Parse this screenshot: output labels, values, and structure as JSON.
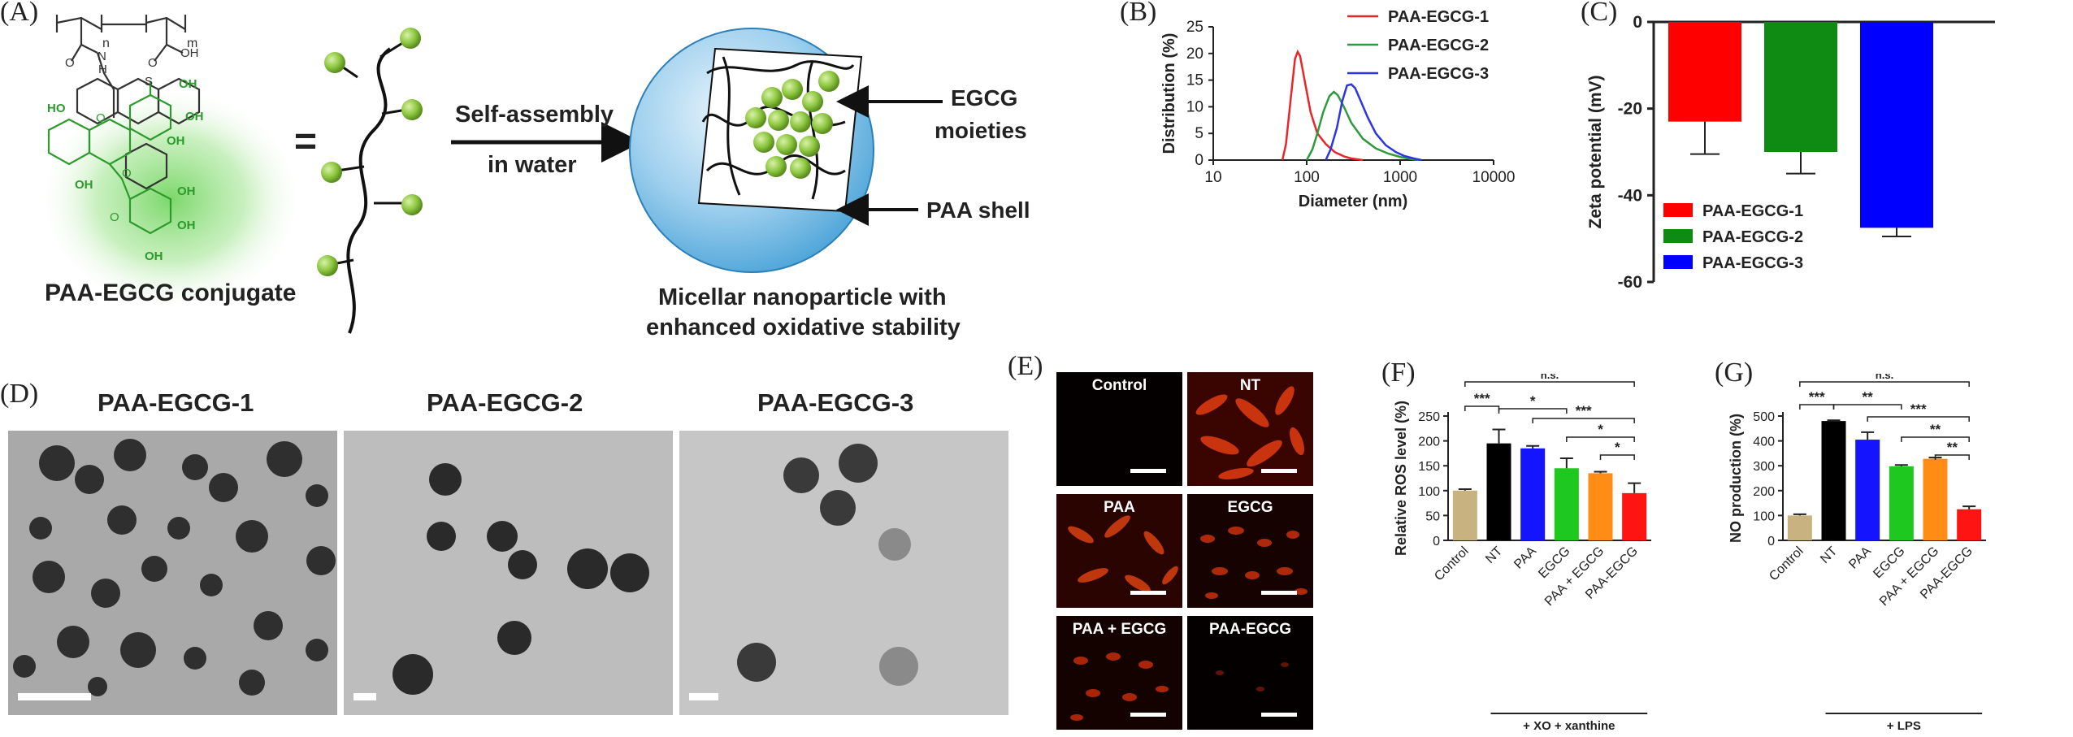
{
  "panels": {
    "a": "(A)",
    "b": "(B)",
    "c": "(C)",
    "d": "(D)",
    "e": "(E)",
    "f": "(F)",
    "g": "(G)"
  },
  "panelA": {
    "n_sub": "n",
    "m_sub": "m",
    "nh": "N",
    "h_nh": "H",
    "oh_acid": "OH",
    "s": "S",
    "o1": "O",
    "o2": "O",
    "o3": "O",
    "o4": "O",
    "o5": "O",
    "oh_labels": [
      "OH",
      "OH",
      "OH",
      "HO",
      "OH",
      "OH",
      "OH",
      "OH"
    ],
    "equals": "=",
    "conjugate_label": "PAA-EGCG conjugate",
    "arrow_top": "Self-assembly",
    "arrow_bottom": "in water",
    "egcg_label_1": "EGCG",
    "egcg_label_2": "moieties",
    "shell_label": "PAA shell",
    "micelle_caption_1": "Micellar nanoparticle with",
    "micelle_caption_2": "enhanced oxidative stability"
  },
  "chart_data": [
    {
      "id": "B",
      "type": "line",
      "xlabel": "Diameter (nm)",
      "ylabel": "Distribution (%)",
      "xscale": "log",
      "xlim": [
        10,
        10000
      ],
      "ylim": [
        0,
        25
      ],
      "xticks": [
        "10",
        "100",
        "1000",
        "10000"
      ],
      "yticks": [
        "0",
        "5",
        "10",
        "15",
        "20",
        "25"
      ],
      "legend_position": "top-right",
      "series": [
        {
          "name": "PAA-EGCG-1",
          "color": "#e8262a",
          "x": [
            55,
            60,
            68,
            75,
            80,
            85,
            95,
            110,
            130,
            160,
            200,
            250,
            300,
            400
          ],
          "y": [
            0,
            3,
            12,
            19,
            20.3,
            19.5,
            15,
            9,
            5,
            3,
            1.5,
            0.7,
            0.3,
            0
          ]
        },
        {
          "name": "PAA-EGCG-2",
          "color": "#2e9a3c",
          "x": [
            100,
            115,
            130,
            150,
            175,
            195,
            215,
            250,
            300,
            400,
            550,
            750,
            1000,
            1300,
            1600
          ],
          "y": [
            0,
            2,
            5,
            9,
            12,
            12.8,
            12.2,
            10,
            7,
            4,
            2.2,
            1.2,
            0.6,
            0.2,
            0
          ]
        },
        {
          "name": "PAA-EGCG-3",
          "color": "#2b35e0",
          "x": [
            160,
            180,
            210,
            240,
            270,
            300,
            330,
            380,
            450,
            550,
            700,
            900,
            1100,
            1400,
            1700
          ],
          "y": [
            0,
            2,
            6,
            11,
            14,
            14.2,
            13.5,
            11,
            8,
            5,
            2.8,
            1.5,
            0.8,
            0.3,
            0
          ]
        }
      ]
    },
    {
      "id": "C",
      "type": "bar",
      "ylabel": "Zeta potential (mV)",
      "ylim": [
        -60,
        0
      ],
      "yticks": [
        "0",
        "-20",
        "-40",
        "-60"
      ],
      "legend_position": "bottom-left",
      "categories": [
        "PAA-EGCG-1",
        "PAA-EGCG-2",
        "PAA-EGCG-3"
      ],
      "series": [
        {
          "name": "PAA-EGCG-1",
          "color": "#ff0000",
          "value": -23,
          "error": 7.5
        },
        {
          "name": "PAA-EGCG-2",
          "color": "#0f8a12",
          "value": -30,
          "error": 5
        },
        {
          "name": "PAA-EGCG-3",
          "color": "#0000ff",
          "value": -47.5,
          "error": 2
        }
      ]
    },
    {
      "id": "F",
      "type": "bar",
      "ylabel": "Relative ROS level (%)",
      "ylim": [
        0,
        250
      ],
      "yticks": [
        "0",
        "50",
        "100",
        "150",
        "200",
        "250"
      ],
      "categories": [
        "Control",
        "NT",
        "PAA",
        "EGCG",
        "PAA + EGCG",
        "PAA-EGCG"
      ],
      "values": [
        100,
        195,
        185,
        145,
        135,
        95
      ],
      "errors": [
        3,
        28,
        5,
        20,
        3,
        20
      ],
      "colors": [
        "#c8b27f",
        "#000000",
        "#1414ff",
        "#1ec81e",
        "#ff8c14",
        "#ff1414"
      ],
      "group_label": "+ XO + xanthine",
      "significance": [
        {
          "from": 0,
          "to": 5,
          "label": "n.s."
        },
        {
          "from": 0,
          "to": 1,
          "label": "***"
        },
        {
          "from": 1,
          "to": 3,
          "label": "*"
        },
        {
          "from": 2,
          "to": 5,
          "label": "***"
        },
        {
          "from": 3,
          "to": 5,
          "label": "*"
        },
        {
          "from": 4,
          "to": 5,
          "label": "*"
        }
      ]
    },
    {
      "id": "G",
      "type": "bar",
      "ylabel": "NO production (%)",
      "ylim": [
        0,
        500
      ],
      "yticks": [
        "0",
        "100",
        "200",
        "300",
        "400",
        "500"
      ],
      "categories": [
        "Control",
        "NT",
        "PAA",
        "EGCG",
        "PAA + EGCG",
        "PAA-EGCG"
      ],
      "values": [
        100,
        480,
        405,
        298,
        328,
        125
      ],
      "errors": [
        5,
        3,
        30,
        5,
        5,
        12
      ],
      "colors": [
        "#c8b27f",
        "#000000",
        "#1414ff",
        "#1ec81e",
        "#ff8c14",
        "#ff1414"
      ],
      "group_label": "+ LPS",
      "significance": [
        {
          "from": 0,
          "to": 5,
          "label": "n.s."
        },
        {
          "from": 0,
          "to": 1,
          "label": "***"
        },
        {
          "from": 1,
          "to": 3,
          "label": "**"
        },
        {
          "from": 2,
          "to": 5,
          "label": "***"
        },
        {
          "from": 3,
          "to": 5,
          "label": "**"
        },
        {
          "from": 4,
          "to": 5,
          "label": "**"
        }
      ]
    }
  ],
  "panelD": {
    "titles": [
      "PAA-EGCG-1",
      "PAA-EGCG-2",
      "PAA-EGCG-3"
    ]
  },
  "panelE": {
    "cells": [
      "Control",
      "NT",
      "PAA",
      "EGCG",
      "PAA + EGCG",
      "PAA-EGCG"
    ]
  }
}
